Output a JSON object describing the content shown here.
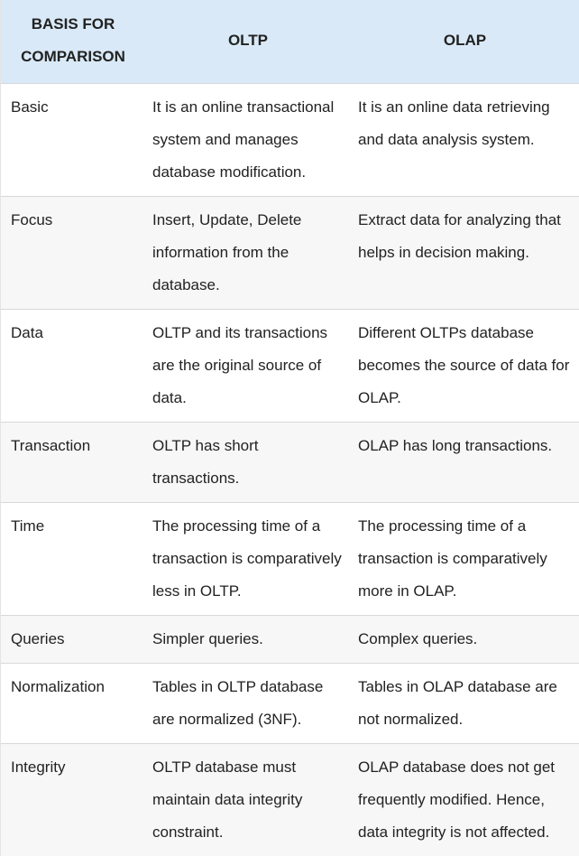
{
  "header": {
    "basis": "BASIS FOR\nCOMPARISON",
    "oltp": "OLTP",
    "olap": "OLAP"
  },
  "rows": [
    {
      "basis": "Basic",
      "oltp": "It is an online transactional system and manages database modification.",
      "olap": "It is an online data retrieving and data analysis system."
    },
    {
      "basis": "Focus",
      "oltp": "Insert, Update, Delete information from the database.",
      "olap": "Extract data for analyzing that helps in decision making."
    },
    {
      "basis": "Data",
      "oltp": "OLTP and its transactions are the original source of data.",
      "olap": "Different OLTPs database becomes the source of data for OLAP."
    },
    {
      "basis": "Transaction",
      "oltp": "OLTP has short transactions.",
      "olap": "OLAP has long transactions."
    },
    {
      "basis": "Time",
      "oltp": "The processing time of a transaction is comparatively less in OLTP.",
      "olap": "The processing time of a transaction is comparatively more in OLAP."
    },
    {
      "basis": "Queries",
      "oltp": "Simpler queries.",
      "olap": "Complex queries."
    },
    {
      "basis": "Normalization",
      "oltp": "Tables in OLTP database are normalized (3NF).",
      "olap": "Tables in OLAP database are not normalized."
    },
    {
      "basis": "Integrity",
      "oltp": "OLTP database must maintain data integrity constraint.",
      "olap": "OLAP database does not get frequently modified. Hence, data integrity is not affected."
    }
  ]
}
